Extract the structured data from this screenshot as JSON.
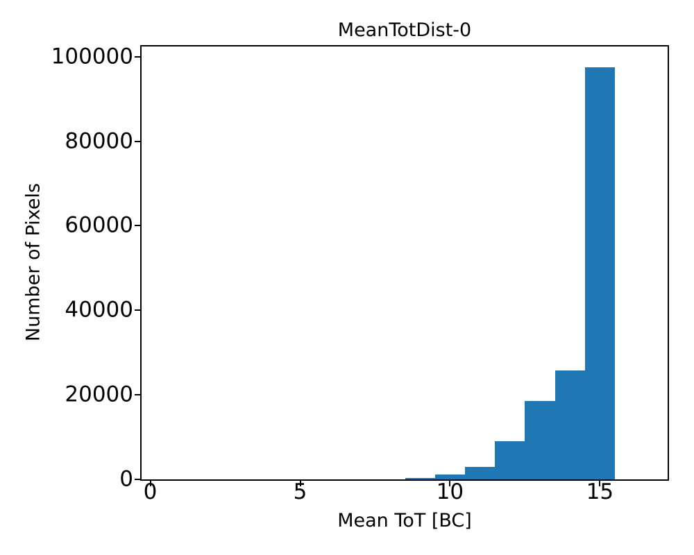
{
  "chart_data": {
    "type": "bar",
    "subtype": "histogram",
    "title": "MeanTotDist-0",
    "xlabel": "Mean ToT [BC]",
    "ylabel": "Number of Pixels",
    "bin_edges": [
      0.5,
      1.5,
      2.5,
      3.5,
      4.5,
      5.5,
      6.5,
      7.5,
      8.5,
      9.5,
      10.5,
      11.5,
      12.5,
      13.5,
      14.5,
      15.5,
      16.5
    ],
    "counts": [
      0,
      0,
      0,
      0,
      0,
      0,
      0,
      0,
      350,
      1100,
      3000,
      9000,
      18500,
      25700,
      97500,
      0
    ],
    "xlim": [
      -0.29,
      17.26
    ],
    "ylim": [
      0,
      102400
    ],
    "xticks": {
      "values": [
        0,
        5,
        10,
        15
      ],
      "labels": [
        "0",
        "5",
        "10",
        "15"
      ]
    },
    "yticks": {
      "values": [
        0,
        20000,
        40000,
        60000,
        80000,
        100000
      ],
      "labels": [
        "0",
        "20000",
        "40000",
        "60000",
        "80000",
        "100000"
      ]
    },
    "bar_color": "#1f77b4",
    "axis_color": "#000000",
    "text_color": "#000000",
    "background_color": "#ffffff",
    "grid": false,
    "legend_position": "none"
  }
}
